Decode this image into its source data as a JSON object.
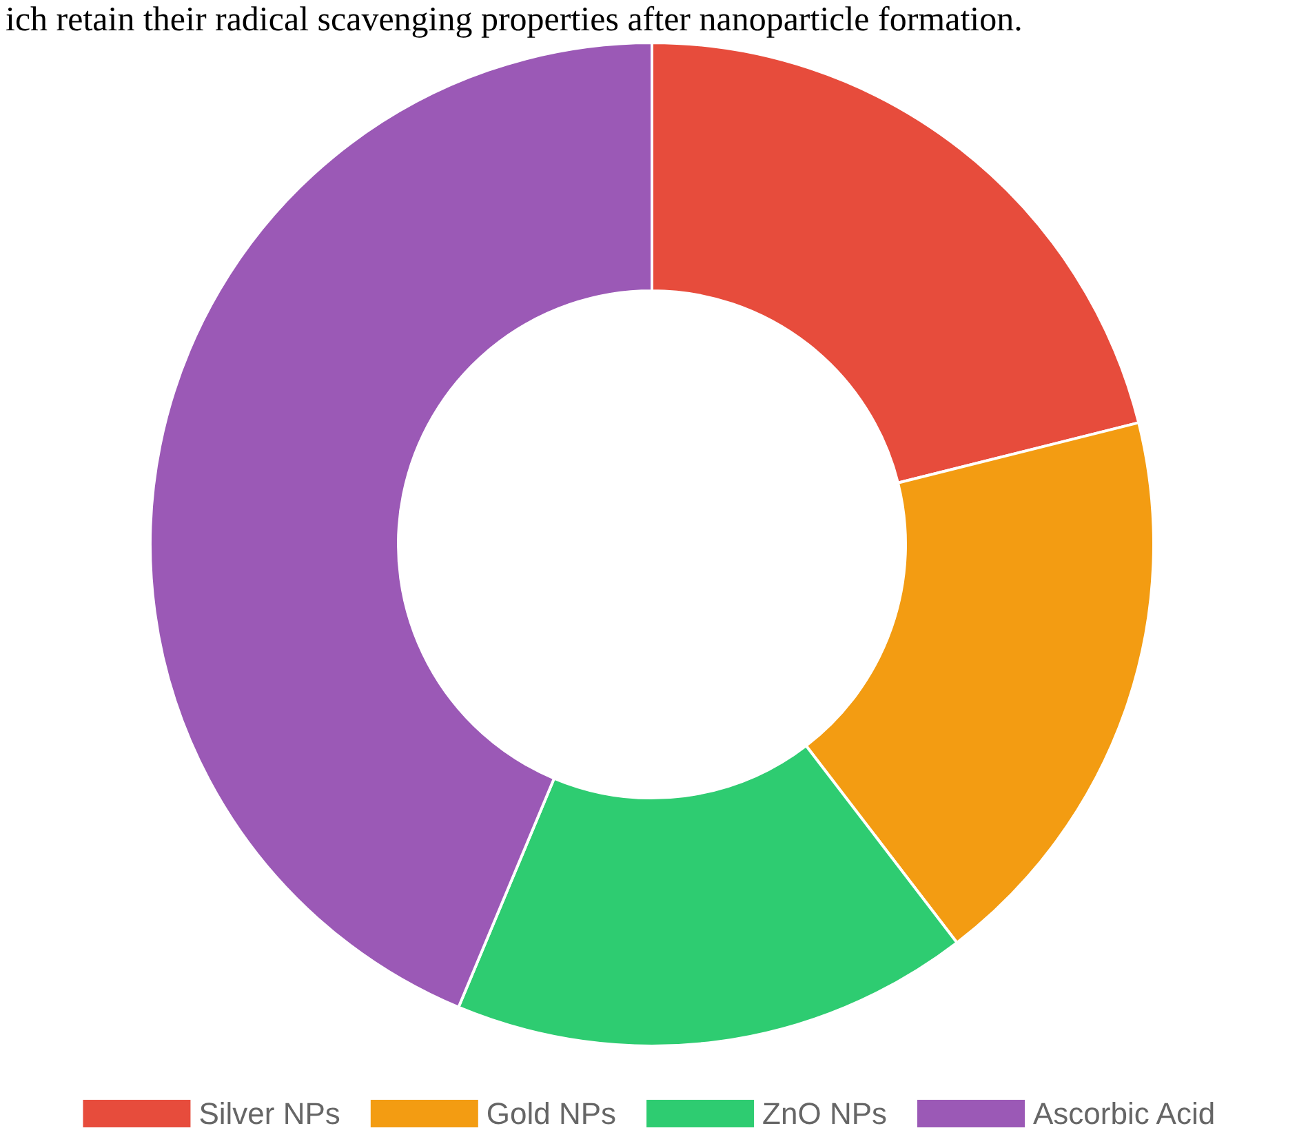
{
  "chart_data": {
    "type": "donut",
    "categories": [
      "Silver NPs",
      "Gold NPs",
      "ZnO NPs",
      "Ascorbic Acid"
    ],
    "values": [
      21.1,
      18.5,
      16.7,
      43.7
    ],
    "colors": [
      "#e74c3c",
      "#f39c12",
      "#2ecc71",
      "#9b59b6"
    ],
    "legend": "bottom",
    "annotations": [
      "ich retain their radical scavenging properties after nanoparticle formation."
    ]
  }
}
